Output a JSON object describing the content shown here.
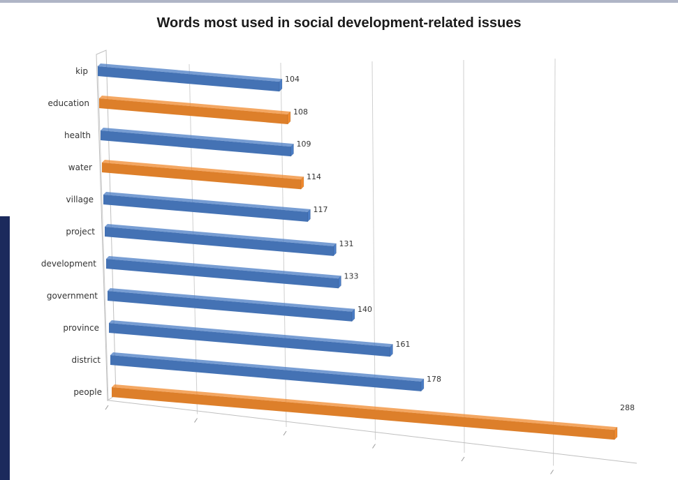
{
  "chart_data": {
    "type": "bar",
    "orientation": "horizontal",
    "style": "3d",
    "title": "Words most used in social development-related issues",
    "xlabel": "",
    "ylabel": "",
    "xlim": [
      0,
      300
    ],
    "grid": true,
    "legend": "none",
    "categories": [
      "kip",
      "education",
      "health",
      "water",
      "village",
      "project",
      "development",
      "government",
      "province",
      "district",
      "people"
    ],
    "values": [
      104,
      108,
      109,
      114,
      117,
      131,
      133,
      140,
      161,
      178,
      288
    ],
    "bar_colors": [
      "#4a7cc4",
      "#f08a2e",
      "#4a7cc4",
      "#f08a2e",
      "#4a7cc4",
      "#4a7cc4",
      "#4a7cc4",
      "#4a7cc4",
      "#4a7cc4",
      "#4a7cc4",
      "#f08a2e"
    ]
  },
  "colors": {
    "blue_bar": "#4a7cc4",
    "orange_bar": "#f08a2e",
    "frame": "#1b2a5c"
  }
}
